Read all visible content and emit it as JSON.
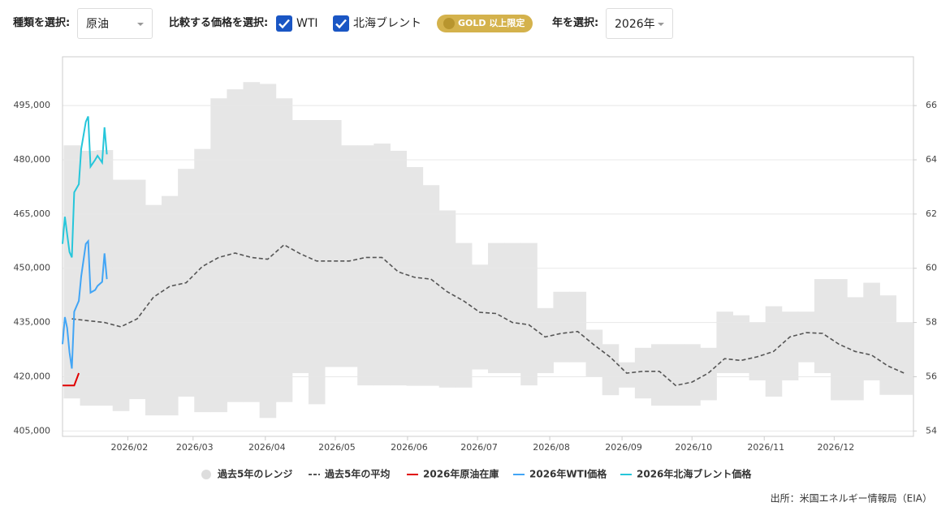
{
  "controls": {
    "type_label": "種類を選択:",
    "type_value": "原油",
    "compare_label": "比較する価格を選択:",
    "options": [
      {
        "label": "WTI",
        "checked": true
      },
      {
        "label": "北海ブレント",
        "checked": true
      }
    ],
    "badge": "GOLD 以上限定",
    "year_label": "年を選択:",
    "year_value": "2026年"
  },
  "chart_data": {
    "type": "line",
    "xlim": [
      3,
      368
    ],
    "xticks": [
      {
        "value": 31,
        "label": "2026/02"
      },
      {
        "value": 59,
        "label": "2026/03"
      },
      {
        "value": 90,
        "label": "2026/04"
      },
      {
        "value": 120,
        "label": "2026/05"
      },
      {
        "value": 151,
        "label": "2026/06"
      },
      {
        "value": 181,
        "label": "2026/07"
      },
      {
        "value": 212,
        "label": "2026/08"
      },
      {
        "value": 243,
        "label": "2026/09"
      },
      {
        "value": 273,
        "label": "2026/10"
      },
      {
        "value": 304,
        "label": "2026/11"
      },
      {
        "value": 334,
        "label": "2026/12"
      }
    ],
    "ylim": [
      403500,
      508500
    ],
    "yticks": [
      {
        "value": 405000,
        "label": "405,000"
      },
      {
        "value": 420000,
        "label": "420,000"
      },
      {
        "value": 435000,
        "label": "435,000"
      },
      {
        "value": 450000,
        "label": "450,000"
      },
      {
        "value": 465000,
        "label": "465,000"
      },
      {
        "value": 480000,
        "label": "480,000"
      },
      {
        "value": 495000,
        "label": "495,000"
      }
    ],
    "y2lim": [
      53.8,
      67.8
    ],
    "y2ticks": [
      54,
      56,
      58,
      60,
      62,
      64,
      66
    ],
    "grid": true,
    "legend": "bottom",
    "series": [
      {
        "name": "過去5年のレンジ",
        "color": "#e6e6e6",
        "style": "band",
        "axis": "y",
        "x": [
          7,
          14,
          21,
          28,
          35,
          42,
          49,
          56,
          63,
          70,
          77,
          84,
          91,
          98,
          105,
          112,
          119,
          126,
          133,
          140,
          147,
          154,
          161,
          168,
          175,
          182,
          189,
          196,
          203,
          210,
          217,
          224,
          231,
          238,
          245,
          252,
          259,
          266,
          273,
          280,
          287,
          294,
          301,
          308,
          315,
          322,
          329,
          336,
          343,
          350,
          357,
          364
        ],
        "low": [
          414000,
          412000,
          412000,
          410500,
          413800,
          409300,
          409300,
          414500,
          410200,
          410200,
          413000,
          413000,
          408600,
          413000,
          421000,
          412400,
          422700,
          422700,
          417600,
          417600,
          417600,
          417500,
          417500,
          417000,
          417000,
          422000,
          421000,
          421000,
          417600,
          421000,
          424000,
          424000,
          420000,
          414900,
          417000,
          414000,
          412000,
          412000,
          412000,
          413500,
          421000,
          421000,
          419000,
          414500,
          419000,
          424000,
          421000,
          413500,
          413500,
          419000,
          415000,
          415000
        ],
        "high": [
          484000,
          482500,
          482700,
          474500,
          474500,
          467500,
          470000,
          477500,
          483000,
          497000,
          499500,
          501500,
          501000,
          497000,
          491000,
          491000,
          491000,
          484000,
          484000,
          484500,
          482500,
          478000,
          473000,
          466000,
          457000,
          451000,
          457000,
          457000,
          457000,
          439000,
          443500,
          443500,
          433000,
          429000,
          424000,
          428000,
          429000,
          429000,
          429000,
          428000,
          438000,
          437000,
          435000,
          439500,
          438000,
          438000,
          447000,
          447000,
          442000,
          446000,
          442500,
          435000
        ]
      },
      {
        "name": "過去5年の平均",
        "color": "#555555",
        "style": "dashed",
        "axis": "y",
        "x": [
          7,
          14,
          21,
          28,
          35,
          42,
          49,
          56,
          63,
          70,
          77,
          84,
          91,
          98,
          105,
          112,
          119,
          126,
          133,
          140,
          147,
          154,
          161,
          168,
          175,
          182,
          189,
          196,
          203,
          210,
          217,
          224,
          231,
          238,
          245,
          252,
          259,
          266,
          273,
          280,
          287,
          294,
          301,
          308,
          315,
          322,
          329,
          336,
          343,
          350,
          357,
          364
        ],
        "values": [
          436000,
          435500,
          435000,
          433800,
          436000,
          442000,
          445000,
          446000,
          450500,
          453000,
          454200,
          453000,
          452500,
          456500,
          454000,
          452000,
          452000,
          452000,
          453000,
          453000,
          449000,
          447500,
          447000,
          443500,
          441000,
          437800,
          437500,
          435000,
          434400,
          431000,
          432000,
          432500,
          428800,
          425400,
          421000,
          421500,
          421500,
          417600,
          418500,
          421000,
          425000,
          424500,
          425500,
          427000,
          431000,
          432200,
          432000,
          429000,
          427000,
          426000,
          423000,
          421000
        ]
      },
      {
        "name": "2026年原油在庫",
        "color": "#e00000",
        "style": "solid",
        "axis": "y",
        "x": [
          3,
          6,
          8,
          10
        ],
        "values": [
          417600,
          417600,
          417600,
          421000
        ]
      },
      {
        "name": "2026年WTI価格",
        "color": "#42a5f5",
        "style": "solid",
        "axis": "y2",
        "x": [
          3,
          4,
          5,
          6,
          7,
          8,
          10,
          11,
          13,
          14,
          15,
          17,
          18,
          20,
          21,
          22
        ],
        "values": [
          57.2,
          58.2,
          57.8,
          56.9,
          56.3,
          58.4,
          58.8,
          59.7,
          60.9,
          61.0,
          59.1,
          59.2,
          59.35,
          59.5,
          60.55,
          59.6
        ]
      },
      {
        "name": "2026年北海ブレント価格",
        "color": "#26c6da",
        "style": "solid",
        "axis": "y2",
        "x": [
          3,
          4,
          6,
          7,
          8,
          10,
          11,
          13,
          14,
          15,
          17,
          18,
          20,
          21,
          22
        ],
        "values": [
          60.9,
          61.9,
          60.6,
          60.4,
          62.8,
          63.1,
          64.4,
          65.4,
          65.6,
          63.75,
          64.0,
          64.15,
          63.9,
          65.2,
          64.2
        ]
      }
    ]
  },
  "source": "出所：米国エネルギー情報局（EIA）"
}
